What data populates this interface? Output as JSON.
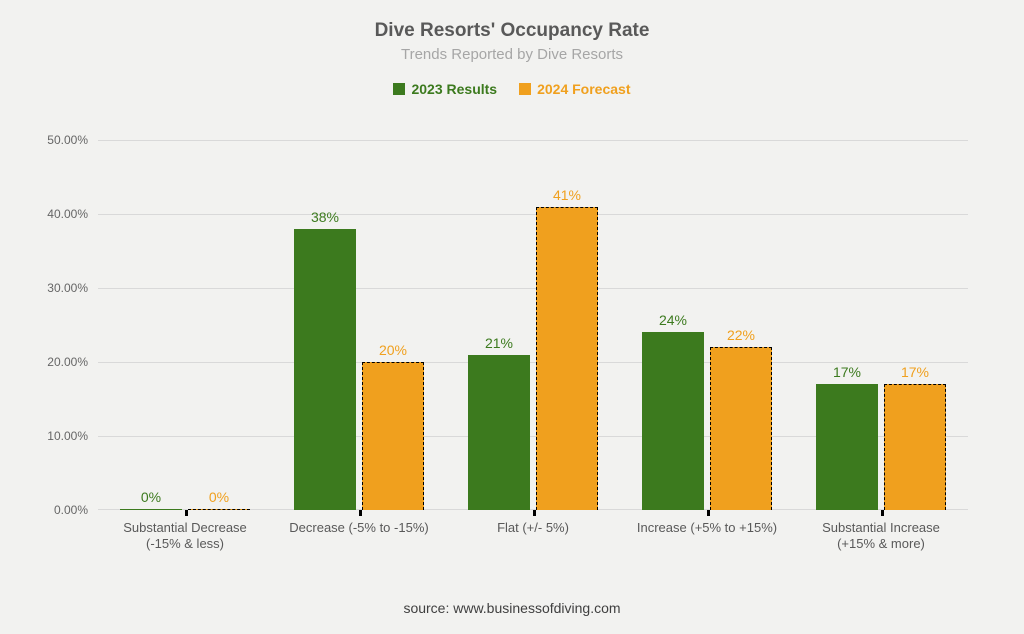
{
  "chart": {
    "type": "bar",
    "title": "Dive Resorts' Occupancy Rate",
    "subtitle": "Trends Reported by Dive Resorts",
    "source": "source: www.businessofdiving.com",
    "background_color": "#f2f2f0",
    "title_color": "#595959",
    "subtitle_color": "#a6a6a6",
    "grid_color": "#d9d9d9",
    "title_fontsize": 19,
    "subtitle_fontsize": 15,
    "label_fontsize": 13,
    "ymax": 50,
    "ytick_step": 10,
    "yticks": [
      "0.00%",
      "10.00%",
      "20.00%",
      "30.00%",
      "40.00%",
      "50.00%"
    ],
    "series": {
      "results": {
        "label": "2023 Results",
        "color": "#3c7a1e",
        "dashed_border": false
      },
      "forecast": {
        "label": "2024 Forecast",
        "color": "#f0a01e",
        "dashed_border": true
      }
    },
    "categories": [
      {
        "label_l1": "Substantial Decrease",
        "label_l2": "(-15% & less)",
        "results": 0,
        "forecast": 0,
        "results_label": "0%",
        "forecast_label": "0%"
      },
      {
        "label_l1": "Decrease (-5% to -15%)",
        "label_l2": "",
        "results": 38,
        "forecast": 20,
        "results_label": "38%",
        "forecast_label": "20%"
      },
      {
        "label_l1": "Flat (+/- 5%)",
        "label_l2": "",
        "results": 21,
        "forecast": 41,
        "results_label": "21%",
        "forecast_label": "41%"
      },
      {
        "label_l1": "Increase (+5% to +15%)",
        "label_l2": "",
        "results": 24,
        "forecast": 22,
        "results_label": "24%",
        "forecast_label": "22%"
      },
      {
        "label_l1": "Substantial Increase",
        "label_l2": "(+15% & more)",
        "results": 17,
        "forecast": 17,
        "results_label": "17%",
        "forecast_label": "17%"
      }
    ]
  }
}
